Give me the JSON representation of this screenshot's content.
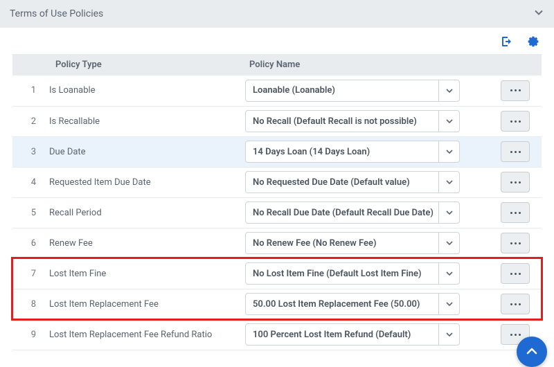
{
  "header": {
    "title": "Terms of Use Policies"
  },
  "columns": {
    "type": "Policy Type",
    "name": "Policy Name"
  },
  "rows": [
    {
      "n": "1",
      "type": "Is Loanable",
      "name": "Loanable (Loanable)",
      "hl": false
    },
    {
      "n": "2",
      "type": "Is Recallable",
      "name": "No Recall (Default Recall is not possible)",
      "hl": false
    },
    {
      "n": "3",
      "type": "Due Date",
      "name": "14 Days Loan (14 Days Loan)",
      "hl": true
    },
    {
      "n": "4",
      "type": "Requested Item Due Date",
      "name": "No Requested Due Date (Default value)",
      "hl": false
    },
    {
      "n": "5",
      "type": "Recall Period",
      "name": "No Recall Due Date (Default Recall Due Date)",
      "hl": false
    },
    {
      "n": "6",
      "type": "Renew Fee",
      "name": "No Renew Fee (No Renew Fee)",
      "hl": false
    },
    {
      "n": "7",
      "type": "Lost Item Fine",
      "name": "No Lost Item Fine (Default Lost Item Fine)",
      "hl": false
    },
    {
      "n": "8",
      "type": "Lost Item Replacement Fee",
      "name": "50.00 Lost Item Replacement Fee (50.00)",
      "hl": false
    },
    {
      "n": "9",
      "type": "Lost Item Replacement Fee Refund Ratio",
      "name": "100 Percent Lost Item Refund (Default)",
      "hl": false
    }
  ],
  "highlight": {
    "startRow": 7,
    "endRow": 8,
    "color": "#e02020"
  },
  "colors": {
    "headerBg": "#e9ecef",
    "rowHighlight": "#eaf2fb",
    "fab": "#1f69d2",
    "exportIcon": "#1f69d2",
    "gearIcon": "#1f69d2"
  }
}
